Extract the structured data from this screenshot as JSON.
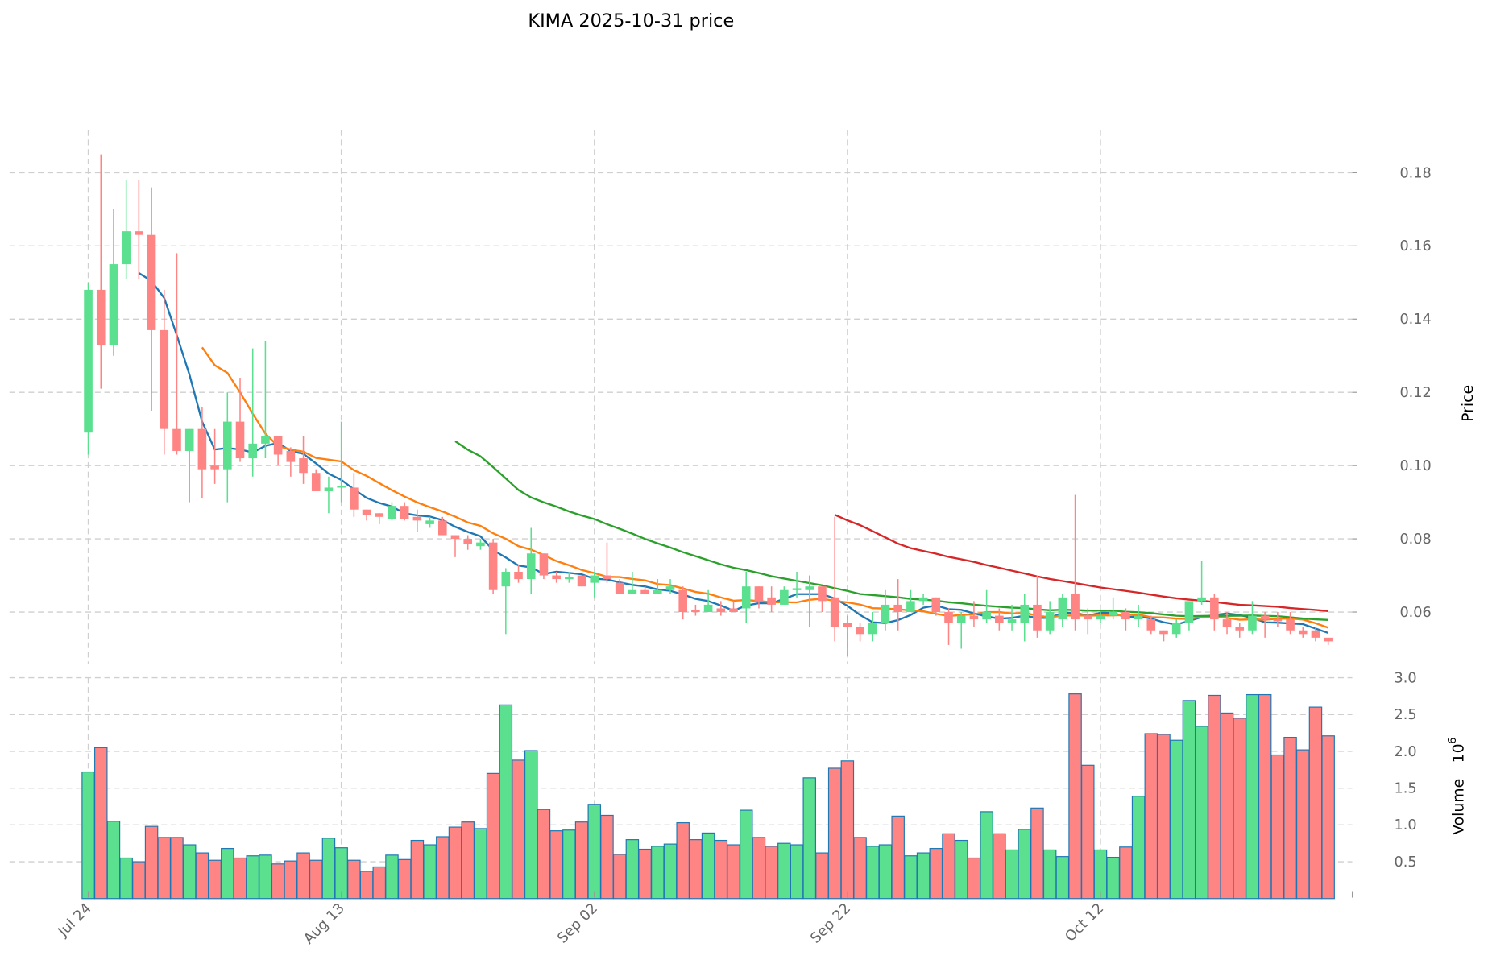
{
  "chart_data": {
    "type": "candlestick",
    "title": "KIMA  2025-10-31  price",
    "ylabel_price": "Price",
    "ylabel_volume": "Volume",
    "volume_exponent": "10",
    "volume_exponent_power": "6",
    "x_ticks": [
      "Jul 24",
      "Aug 13",
      "Sep 02",
      "Sep 22",
      "Oct 12"
    ],
    "x_tick_index": [
      0,
      20,
      40,
      60,
      80
    ],
    "price_ticks": [
      "0.06",
      "0.08",
      "0.10",
      "0.12",
      "0.14",
      "0.16",
      "0.18"
    ],
    "volume_ticks": [
      "0.5",
      "1.0",
      "1.5",
      "2.0",
      "2.5",
      "3.0"
    ],
    "price_ylim": [
      0.046,
      0.192
    ],
    "volume_ylim": [
      0,
      3.0
    ],
    "colors": {
      "up": "#5ae08e",
      "down": "#ff8585",
      "vol_edge": "#1f77b4",
      "ma5": "#1f77b4",
      "ma10": "#ff7f0e",
      "ma30": "#2ca02c",
      "ma60": "#d62728"
    },
    "moving_averages": [
      5,
      10,
      30,
      60
    ],
    "ohlc": [
      [
        0.109,
        0.15,
        0.103,
        0.148
      ],
      [
        0.148,
        0.185,
        0.121,
        0.133
      ],
      [
        0.133,
        0.17,
        0.13,
        0.155
      ],
      [
        0.155,
        0.178,
        0.151,
        0.164
      ],
      [
        0.164,
        0.178,
        0.151,
        0.163
      ],
      [
        0.163,
        0.176,
        0.115,
        0.137
      ],
      [
        0.137,
        0.148,
        0.103,
        0.11
      ],
      [
        0.11,
        0.158,
        0.103,
        0.104
      ],
      [
        0.104,
        0.11,
        0.09,
        0.11
      ],
      [
        0.11,
        0.116,
        0.091,
        0.099
      ],
      [
        0.1,
        0.11,
        0.095,
        0.099
      ],
      [
        0.099,
        0.12,
        0.09,
        0.112
      ],
      [
        0.112,
        0.124,
        0.101,
        0.102
      ],
      [
        0.102,
        0.132,
        0.097,
        0.106
      ],
      [
        0.106,
        0.134,
        0.102,
        0.108
      ],
      [
        0.108,
        0.108,
        0.1,
        0.103
      ],
      [
        0.104,
        0.105,
        0.097,
        0.101
      ],
      [
        0.102,
        0.108,
        0.095,
        0.098
      ],
      [
        0.098,
        0.099,
        0.093,
        0.093
      ],
      [
        0.093,
        0.097,
        0.087,
        0.094
      ],
      [
        0.094,
        0.112,
        0.09,
        0.0945
      ],
      [
        0.094,
        0.098,
        0.086,
        0.088
      ],
      [
        0.088,
        0.088,
        0.085,
        0.0865
      ],
      [
        0.087,
        0.087,
        0.084,
        0.086
      ],
      [
        0.0855,
        0.09,
        0.085,
        0.089
      ],
      [
        0.089,
        0.09,
        0.085,
        0.0855
      ],
      [
        0.086,
        0.088,
        0.082,
        0.085
      ],
      [
        0.084,
        0.086,
        0.083,
        0.085
      ],
      [
        0.085,
        0.086,
        0.081,
        0.081
      ],
      [
        0.081,
        0.081,
        0.075,
        0.08
      ],
      [
        0.08,
        0.081,
        0.077,
        0.0785
      ],
      [
        0.078,
        0.08,
        0.077,
        0.079
      ],
      [
        0.079,
        0.08,
        0.065,
        0.066
      ],
      [
        0.067,
        0.072,
        0.054,
        0.071
      ],
      [
        0.071,
        0.073,
        0.068,
        0.069
      ],
      [
        0.069,
        0.083,
        0.065,
        0.076
      ],
      [
        0.076,
        0.076,
        0.069,
        0.07
      ],
      [
        0.07,
        0.071,
        0.068,
        0.069
      ],
      [
        0.069,
        0.071,
        0.068,
        0.0695
      ],
      [
        0.07,
        0.07,
        0.067,
        0.067
      ],
      [
        0.068,
        0.071,
        0.064,
        0.07
      ],
      [
        0.07,
        0.079,
        0.068,
        0.069
      ],
      [
        0.068,
        0.069,
        0.065,
        0.065
      ],
      [
        0.065,
        0.071,
        0.065,
        0.066
      ],
      [
        0.066,
        0.067,
        0.065,
        0.065
      ],
      [
        0.065,
        0.069,
        0.065,
        0.066
      ],
      [
        0.066,
        0.069,
        0.065,
        0.067
      ],
      [
        0.066,
        0.067,
        0.058,
        0.06
      ],
      [
        0.0605,
        0.062,
        0.059,
        0.06
      ],
      [
        0.06,
        0.066,
        0.06,
        0.062
      ],
      [
        0.061,
        0.063,
        0.059,
        0.06
      ],
      [
        0.061,
        0.063,
        0.06,
        0.06
      ],
      [
        0.061,
        0.071,
        0.057,
        0.067
      ],
      [
        0.067,
        0.067,
        0.061,
        0.063
      ],
      [
        0.064,
        0.067,
        0.06,
        0.062
      ],
      [
        0.062,
        0.067,
        0.062,
        0.066
      ],
      [
        0.066,
        0.071,
        0.064,
        0.0665
      ],
      [
        0.066,
        0.07,
        0.056,
        0.067
      ],
      [
        0.067,
        0.067,
        0.06,
        0.063
      ],
      [
        0.064,
        0.086,
        0.052,
        0.056
      ],
      [
        0.057,
        0.059,
        0.048,
        0.056
      ],
      [
        0.056,
        0.057,
        0.052,
        0.054
      ],
      [
        0.054,
        0.06,
        0.052,
        0.057
      ],
      [
        0.057,
        0.066,
        0.055,
        0.062
      ],
      [
        0.062,
        0.069,
        0.055,
        0.06
      ],
      [
        0.06,
        0.066,
        0.06,
        0.063
      ],
      [
        0.063,
        0.065,
        0.062,
        0.064
      ],
      [
        0.064,
        0.064,
        0.059,
        0.06
      ],
      [
        0.06,
        0.061,
        0.051,
        0.057
      ],
      [
        0.057,
        0.06,
        0.05,
        0.059
      ],
      [
        0.059,
        0.063,
        0.056,
        0.058
      ],
      [
        0.058,
        0.066,
        0.057,
        0.06
      ],
      [
        0.059,
        0.061,
        0.055,
        0.057
      ],
      [
        0.057,
        0.062,
        0.055,
        0.058
      ],
      [
        0.057,
        0.065,
        0.052,
        0.062
      ],
      [
        0.062,
        0.07,
        0.053,
        0.055
      ],
      [
        0.055,
        0.063,
        0.054,
        0.06
      ],
      [
        0.058,
        0.065,
        0.056,
        0.064
      ],
      [
        0.065,
        0.092,
        0.055,
        0.058
      ],
      [
        0.059,
        0.061,
        0.054,
        0.058
      ],
      [
        0.058,
        0.06,
        0.057,
        0.059
      ],
      [
        0.059,
        0.064,
        0.058,
        0.06
      ],
      [
        0.06,
        0.061,
        0.055,
        0.058
      ],
      [
        0.058,
        0.062,
        0.056,
        0.059
      ],
      [
        0.058,
        0.059,
        0.054,
        0.055
      ],
      [
        0.055,
        0.055,
        0.052,
        0.054
      ],
      [
        0.054,
        0.058,
        0.053,
        0.057
      ],
      [
        0.057,
        0.063,
        0.055,
        0.063
      ],
      [
        0.063,
        0.074,
        0.062,
        0.064
      ],
      [
        0.064,
        0.065,
        0.055,
        0.058
      ],
      [
        0.058,
        0.06,
        0.054,
        0.056
      ],
      [
        0.056,
        0.057,
        0.053,
        0.055
      ],
      [
        0.055,
        0.063,
        0.054,
        0.059
      ],
      [
        0.059,
        0.06,
        0.053,
        0.058
      ],
      [
        0.058,
        0.06,
        0.056,
        0.0575
      ],
      [
        0.058,
        0.06,
        0.054,
        0.055
      ],
      [
        0.055,
        0.056,
        0.053,
        0.054
      ],
      [
        0.055,
        0.056,
        0.052,
        0.053
      ],
      [
        0.053,
        0.053,
        0.051,
        0.052
      ]
    ],
    "volume": [
      1.72,
      2.05,
      1.05,
      0.55,
      0.5,
      0.98,
      0.83,
      0.83,
      0.73,
      0.62,
      0.52,
      0.68,
      0.55,
      0.58,
      0.59,
      0.47,
      0.51,
      0.62,
      0.52,
      0.82,
      0.69,
      0.52,
      0.37,
      0.43,
      0.59,
      0.53,
      0.79,
      0.73,
      0.84,
      0.97,
      1.04,
      0.95,
      1.7,
      2.63,
      1.88,
      2.01,
      1.21,
      0.92,
      0.93,
      1.04,
      1.28,
      1.13,
      0.6,
      0.8,
      0.67,
      0.71,
      0.74,
      1.03,
      0.8,
      0.89,
      0.79,
      0.73,
      1.2,
      0.83,
      0.71,
      0.75,
      0.73,
      1.64,
      0.62,
      1.77,
      1.87,
      0.83,
      0.71,
      0.73,
      1.12,
      0.58,
      0.62,
      0.68,
      0.88,
      0.79,
      0.55,
      1.18,
      0.88,
      0.66,
      0.94,
      1.23,
      0.66,
      0.57,
      2.78,
      1.81,
      0.66,
      0.56,
      0.7,
      1.39,
      2.24,
      2.23,
      2.15,
      2.69,
      2.34,
      2.76,
      2.52,
      2.45,
      2.77,
      2.77,
      1.95,
      2.19,
      2.02,
      2.6,
      2.21
    ]
  }
}
